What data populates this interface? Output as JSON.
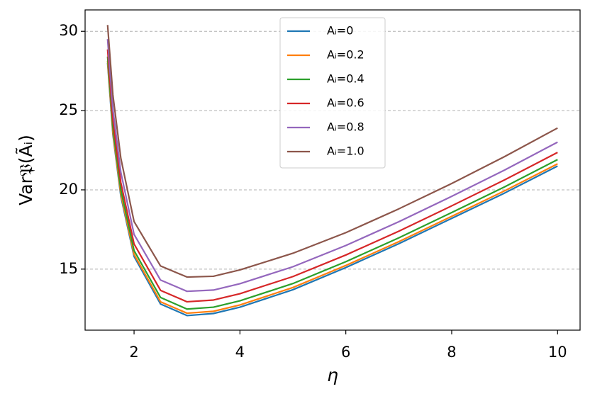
{
  "chart_data": {
    "type": "line",
    "x_label": "η",
    "y_label": "Var𝔓(Ãᵢ)",
    "x": [
      1.5,
      1.6,
      1.75,
      2,
      2.5,
      3,
      3.5,
      4,
      5,
      6,
      7,
      8,
      9,
      10
    ],
    "series": [
      {
        "name": "Aᵢ=0",
        "color": "#1f77b4",
        "values": [
          28.0,
          23.5,
          19.6,
          15.8,
          12.8,
          12.07,
          12.2,
          12.6,
          13.7,
          15.1,
          16.6,
          18.2,
          19.8,
          21.5
        ]
      },
      {
        "name": "Aᵢ=0.2",
        "color": "#ff7f0e",
        "values": [
          28.14,
          23.65,
          19.74,
          15.93,
          12.94,
          12.22,
          12.34,
          12.74,
          13.84,
          15.23,
          16.73,
          18.33,
          19.94,
          21.64
        ]
      },
      {
        "name": "Aᵢ=0.4",
        "color": "#2ca02c",
        "values": [
          28.41,
          23.93,
          20.01,
          16.17,
          13.21,
          12.48,
          12.6,
          13.0,
          14.09,
          15.47,
          16.97,
          18.57,
          20.19,
          21.91
        ]
      },
      {
        "name": "Aᵢ=0.6",
        "color": "#d62728",
        "values": [
          28.86,
          24.4,
          20.46,
          16.59,
          13.66,
          12.94,
          13.05,
          13.45,
          14.53,
          15.89,
          17.39,
          18.99,
          20.63,
          22.36
        ]
      },
      {
        "name": "Aᵢ=0.8",
        "color": "#9467bd",
        "values": [
          29.51,
          25.08,
          21.11,
          17.19,
          14.31,
          13.6,
          13.68,
          14.08,
          15.15,
          16.49,
          17.99,
          19.59,
          21.25,
          23.01
        ]
      },
      {
        "name": "Aᵢ=1.0",
        "color": "#8c564b",
        "values": [
          30.4,
          26.0,
          22.0,
          18.0,
          15.2,
          14.5,
          14.55,
          14.95,
          16.0,
          17.3,
          18.8,
          20.4,
          22.1,
          23.9
        ]
      }
    ],
    "xlim": [
      1.075,
      10.425
    ],
    "xticks": [
      2,
      4,
      6,
      8,
      10
    ],
    "ylim": [
      11.15,
      31.35
    ],
    "yticks": [
      15,
      20,
      25,
      30
    ],
    "grid": "y",
    "legend": "upper center"
  }
}
